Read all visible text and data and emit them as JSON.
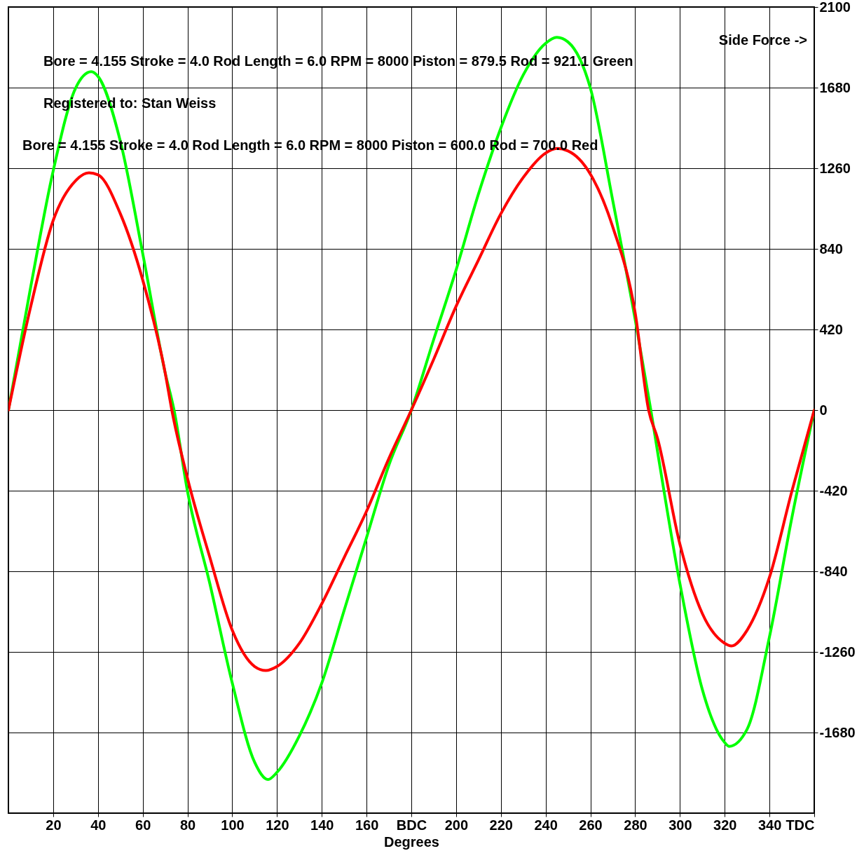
{
  "chart_data": {
    "type": "line",
    "xlabel": "Degrees",
    "annotations": [
      "Side Force ->",
      "Bore = 4.155   Stroke = 4.0   Rod Length = 6.0   RPM = 8000   Piston = 879.5   Rod = 921.1     Green",
      "Registered to:   Stan Weiss",
      "Bore = 4.155   Stroke = 4.0   Rod Length = 6.0   RPM = 8000   Piston = 600.0   Rod = 700.0   Red"
    ],
    "series": [
      {
        "color": "#00ff00",
        "x": [
          0,
          10,
          20,
          30,
          37,
          40,
          50,
          60,
          70,
          74,
          80,
          90,
          100,
          110,
          116,
          120,
          130,
          140,
          150,
          160,
          170,
          180,
          190,
          200,
          210,
          220,
          230,
          240,
          245,
          250,
          260,
          270,
          280,
          287,
          290,
          300,
          310,
          320,
          322,
          330,
          340,
          350,
          360
        ],
        "values": [
          0,
          644,
          1246,
          1677,
          1763,
          1739,
          1401,
          816,
          196,
          0,
          -423,
          -905,
          -1422,
          -1835,
          -1925,
          -1887,
          -1697,
          -1422,
          -1043,
          -664,
          -286,
          0,
          368,
          730,
          1126,
          1470,
          1746,
          1911,
          1942,
          1918,
          1677,
          1091,
          472,
          0,
          -217,
          -905,
          -1456,
          -1732,
          -1752,
          -1663,
          -1181,
          -561,
          0
        ]
      },
      {
        "color": "#ff0000",
        "x": [
          0,
          10,
          20,
          30,
          36,
          40,
          50,
          60,
          70,
          73,
          80,
          90,
          100,
          110,
          115,
          120,
          130,
          140,
          150,
          160,
          170,
          180,
          190,
          200,
          210,
          220,
          230,
          240,
          245,
          250,
          260,
          270,
          280,
          286,
          290,
          300,
          310,
          320,
          323,
          330,
          340,
          350,
          360
        ],
        "values": [
          0,
          541,
          988,
          1195,
          1236,
          1226,
          1023,
          678,
          196,
          0,
          -355,
          -768,
          -1147,
          -1336,
          -1357,
          -1336,
          -1215,
          -1009,
          -768,
          -527,
          -251,
          0,
          265,
          541,
          782,
          1023,
          1212,
          1339,
          1363,
          1350,
          1229,
          954,
          506,
          0,
          -148,
          -699,
          -1060,
          -1215,
          -1229,
          -1147,
          -871,
          -423,
          0
        ]
      }
    ],
    "xlim": [
      0,
      360
    ],
    "xticks": [
      20,
      40,
      60,
      80,
      100,
      120,
      140,
      160,
      {
        "value": 180,
        "label": "BDC"
      },
      200,
      220,
      240,
      260,
      280,
      300,
      320,
      340,
      {
        "value": 360,
        "label": "TDC"
      }
    ],
    "ylim": [
      -2100,
      2100
    ],
    "yticks": [
      -1680,
      -1260,
      -840,
      -420,
      0,
      420,
      840,
      1260,
      1680,
      2100
    ],
    "grid": true,
    "line_style": "solid",
    "marker": "none"
  }
}
